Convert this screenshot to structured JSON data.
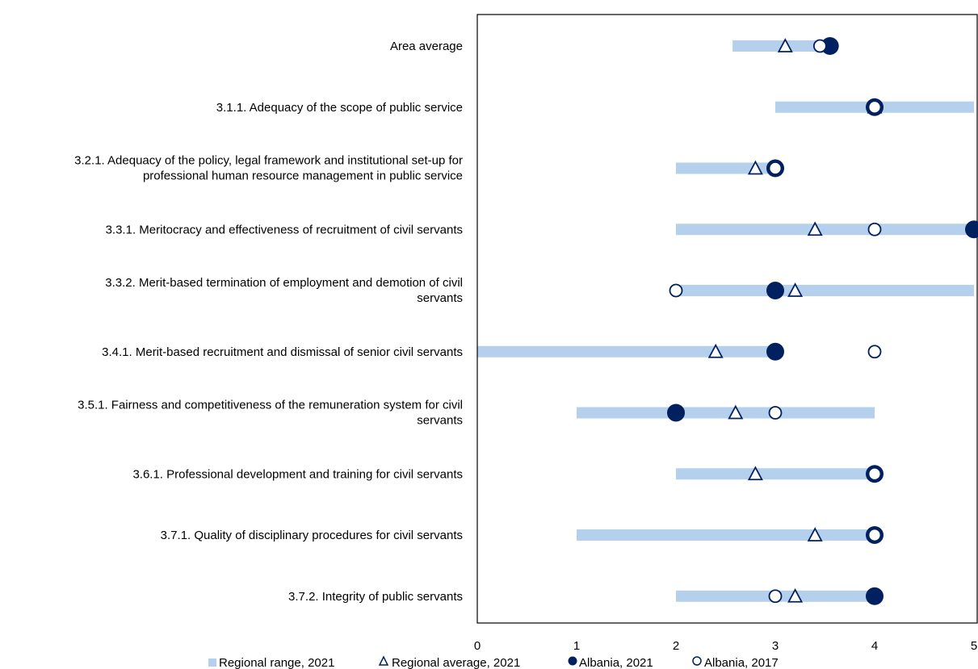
{
  "chart_data": {
    "type": "scatter",
    "orientation": "horizontal",
    "title": "",
    "xlabel": "",
    "ylabel": "",
    "xlim": [
      0,
      5
    ],
    "x_ticks": [
      "0",
      "1",
      "2",
      "3",
      "4",
      "5"
    ],
    "grid": false,
    "legend_position": "bottom",
    "categories": [
      [
        "Area average"
      ],
      [
        "3.1.1. Adequacy of the scope of public service"
      ],
      [
        "3.2.1. Adequacy of the policy, legal framework and institutional set-up for",
        "professional human resource management in public service"
      ],
      [
        "3.3.1. Meritocracy and effectiveness of recruitment of civil servants"
      ],
      [
        "3.3.2. Merit-based termination of employment and demotion of civil",
        "servants"
      ],
      [
        "3.4.1. Merit-based recruitment and dismissal of senior civil servants"
      ],
      [
        "3.5.1. Fairness and competitiveness of the remuneration system for civil",
        "servants"
      ],
      [
        "3.6.1. Professional development and training for civil servants"
      ],
      [
        "3.7.1. Quality of disciplinary procedures for civil servants"
      ],
      [
        "3.7.2. Integrity of public servants"
      ]
    ],
    "series": [
      {
        "name": "Regional range, 2021",
        "kind": "range",
        "color": "#b4d0ec",
        "values": [
          [
            2.57,
            3.57
          ],
          [
            3,
            5
          ],
          [
            2,
            3
          ],
          [
            2,
            5
          ],
          [
            2,
            5
          ],
          [
            0,
            3
          ],
          [
            1,
            4
          ],
          [
            2,
            4
          ],
          [
            1,
            4
          ],
          [
            2,
            4
          ]
        ]
      },
      {
        "name": "Regional average, 2021",
        "kind": "triangle",
        "color": "#002060",
        "values": [
          3.1,
          4.0,
          2.8,
          3.4,
          3.2,
          2.4,
          2.6,
          2.8,
          3.4,
          3.2
        ]
      },
      {
        "name": "Albania, 2021",
        "kind": "filled-circle",
        "color": "#002060",
        "values": [
          3.55,
          4,
          3,
          5,
          3,
          3,
          2,
          4,
          4,
          4
        ]
      },
      {
        "name": "Albania, 2017",
        "kind": "open-circle",
        "color": "#002060",
        "values": [
          3.45,
          4,
          3,
          4,
          2,
          4,
          3,
          4,
          4,
          3
        ]
      }
    ]
  }
}
